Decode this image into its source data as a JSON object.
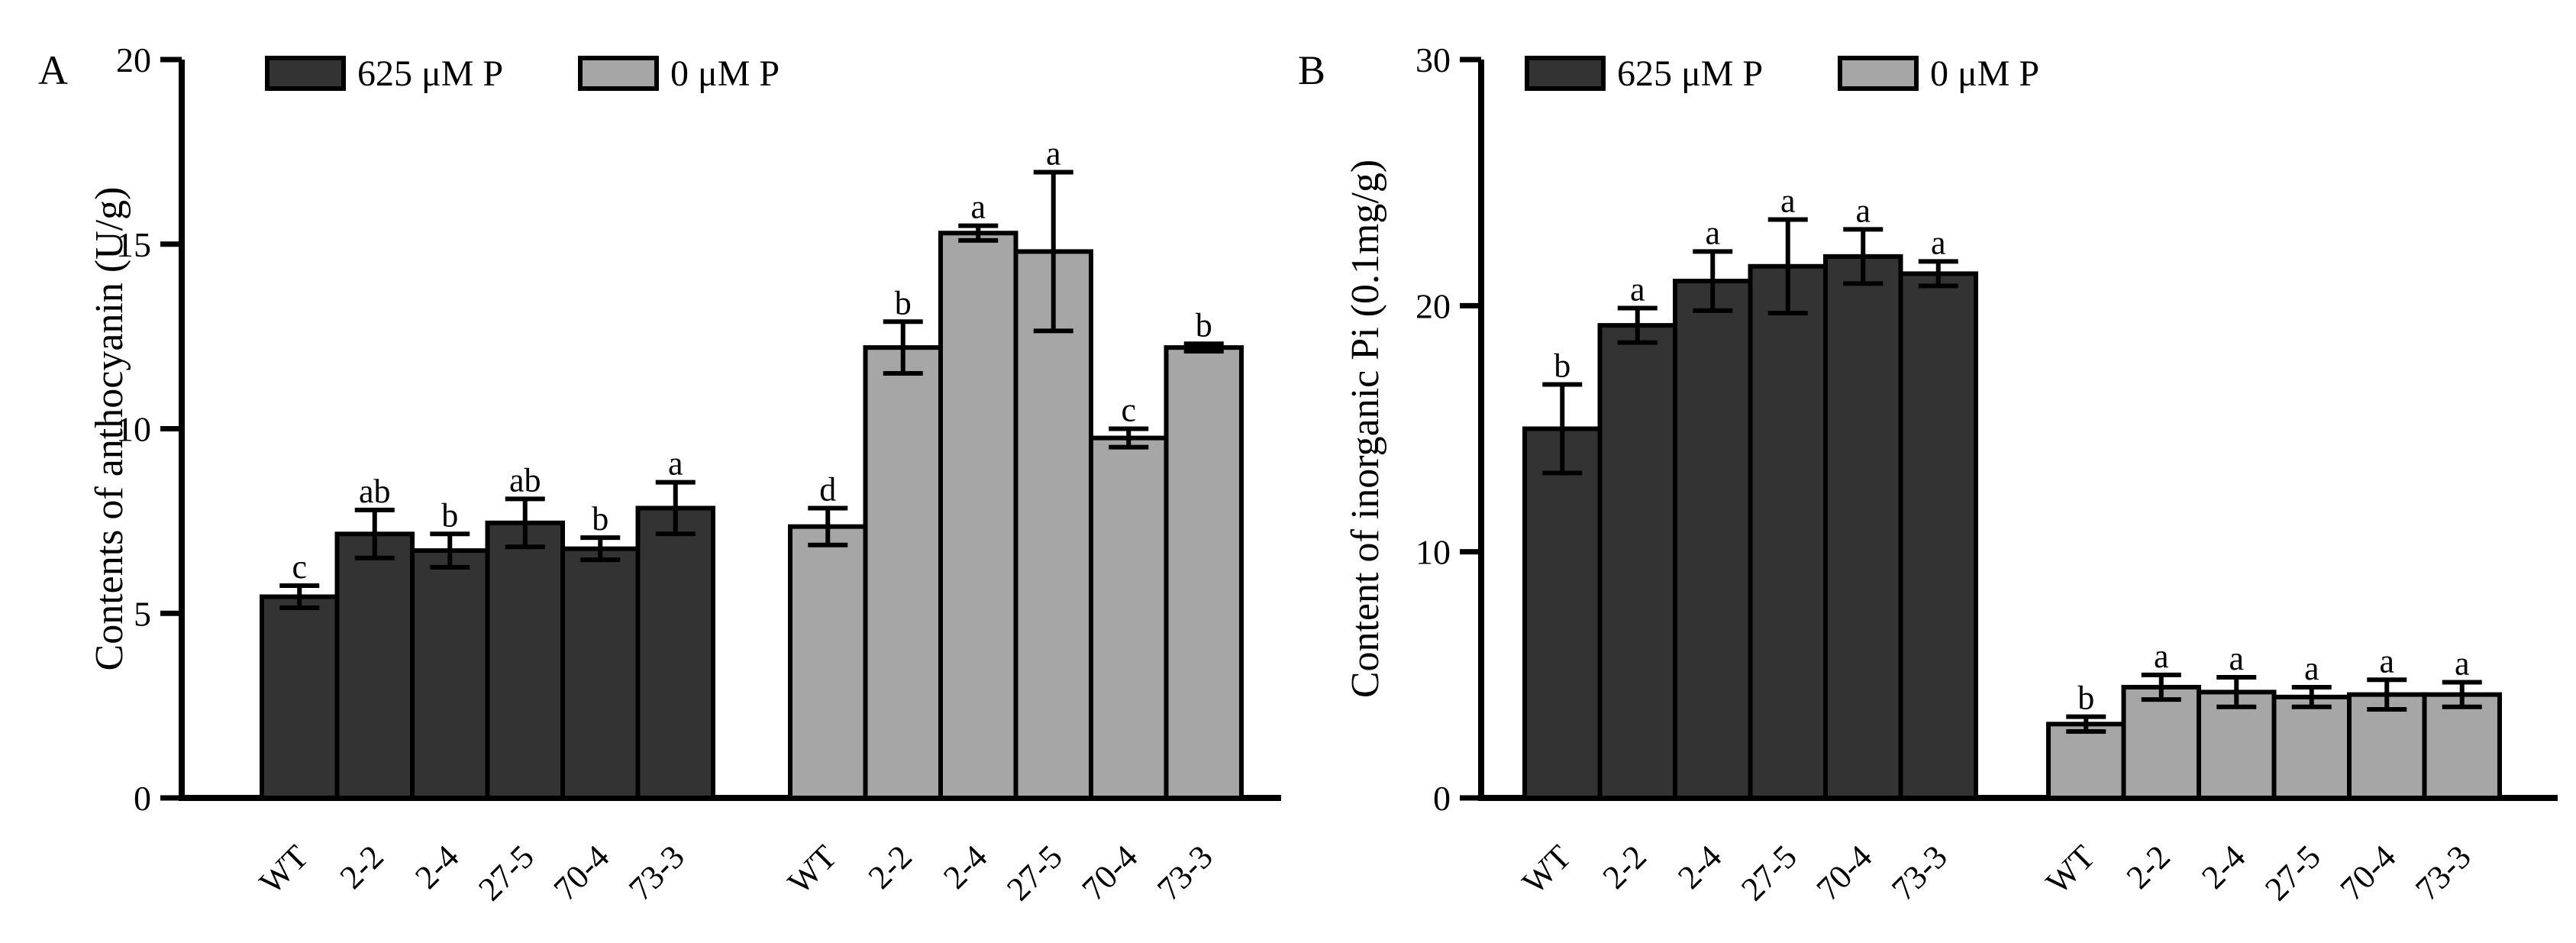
{
  "chart_data": [
    {
      "panel_label": "A",
      "type": "bar",
      "ylabel": "Contents of anthocyanin (U/g)",
      "ylim": [
        0,
        20
      ],
      "yticks": [
        "0",
        "5",
        "10",
        "15",
        "20"
      ],
      "legend_placement": "top-left",
      "groups": [
        {
          "series": "625 μM P",
          "color": "#333333",
          "categories": [
            "WT",
            "2-2",
            "2-4",
            "27-5",
            "70-4",
            "73-3"
          ],
          "values": [
            5.45,
            7.15,
            6.7,
            7.45,
            6.75,
            7.85
          ],
          "errors": [
            0.3,
            0.65,
            0.45,
            0.65,
            0.3,
            0.7
          ],
          "labels": [
            "c",
            "ab",
            "b",
            "ab",
            "b",
            "a"
          ]
        },
        {
          "series": "0 μM P",
          "color": "#a6a6a6",
          "categories": [
            "WT",
            "2-2",
            "2-4",
            "27-5",
            "70-4",
            "73-3"
          ],
          "values": [
            7.35,
            12.2,
            15.3,
            14.8,
            9.75,
            12.2
          ],
          "errors": [
            0.5,
            0.7,
            0.2,
            2.15,
            0.25,
            0.1
          ],
          "labels": [
            "d",
            "b",
            "a",
            "a",
            "c",
            "b"
          ]
        }
      ]
    },
    {
      "panel_label": "B",
      "type": "bar",
      "ylabel": "Content of inorganic Pi (0.1mg/g)",
      "ylim": [
        0,
        30
      ],
      "yticks": [
        "0",
        "10",
        "20",
        "30"
      ],
      "legend_placement": "top-left",
      "groups": [
        {
          "series": "625 μM P",
          "color": "#333333",
          "categories": [
            "WT",
            "2-2",
            "2-4",
            "27-5",
            "70-4",
            "73-3"
          ],
          "values": [
            15.0,
            19.2,
            21.0,
            21.6,
            22.0,
            21.3
          ],
          "errors": [
            1.8,
            0.7,
            1.2,
            1.9,
            1.1,
            0.5
          ],
          "labels": [
            "b",
            "a",
            "a",
            "a",
            "a",
            "a"
          ]
        },
        {
          "series": "0 μM P",
          "color": "#a6a6a6",
          "categories": [
            "WT",
            "2-2",
            "2-4",
            "27-5",
            "70-4",
            "73-3"
          ],
          "values": [
            3.0,
            4.5,
            4.3,
            4.1,
            4.2,
            4.2
          ],
          "errors": [
            0.3,
            0.5,
            0.6,
            0.4,
            0.6,
            0.5
          ],
          "labels": [
            "b",
            "a",
            "a",
            "a",
            "a",
            "a"
          ]
        }
      ]
    }
  ]
}
